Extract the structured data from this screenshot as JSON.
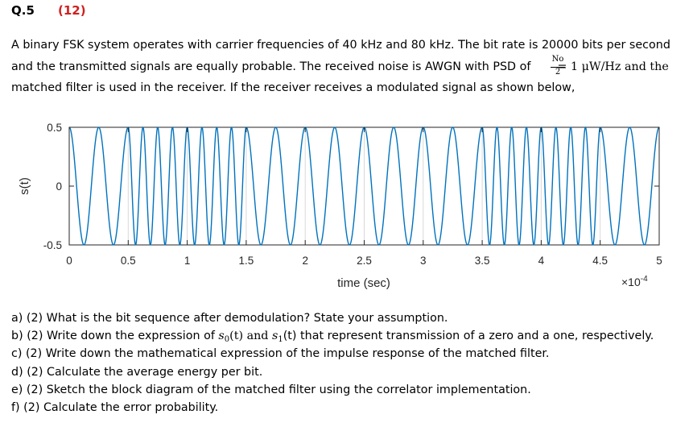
{
  "header": {
    "question": "Q.5",
    "marks": "(12)"
  },
  "intro": {
    "line1": "A binary FSK system operates with carrier frequencies of 40 kHz and 80 kHz. The bit rate is 20000 bits per second",
    "line2_a": "and the transmitted signals are equally probable. The received noise is AWGN with PSD of",
    "frac_num": "No",
    "frac_den": "2",
    "line2_b": "= 1  μW/Hz and the",
    "line3": "matched filter is used in the receiver. If the receiver receives a modulated signal as shown below,"
  },
  "chart_data": {
    "type": "line",
    "xlabel": "time (sec)",
    "ylabel": "s(t)",
    "xlim": [
      0,
      0.0005
    ],
    "ylim": [
      -0.5,
      0.5
    ],
    "amplitude": 0.5,
    "xticks": [
      "0",
      "0.5",
      "1",
      "1.5",
      "2",
      "2.5",
      "3",
      "3.5",
      "4",
      "4.5",
      "5"
    ],
    "yticks": [
      "0.5",
      "0",
      "-0.5"
    ],
    "x_exponent_label": "×10",
    "x_exponent": "-4",
    "bit_period": 5e-05,
    "bit_frequencies_hz": [
      40000,
      80000,
      80000,
      40000,
      40000,
      40000,
      40000,
      80000,
      80000,
      40000
    ],
    "color": "#0072bd",
    "grid": "vertical"
  },
  "parts": {
    "a": "a) (2) What is the bit sequence after demodulation? State your assumption.",
    "b_pre": "b) (2) Write down the expression of ",
    "b_s0": "s",
    "b_s0_sub": "0",
    "b_mid1": "(t) and ",
    "b_s1": "s",
    "b_s1_sub": "1",
    "b_post": "(t) that represent transmission of a zero and a one, respectively.",
    "c": "c) (2) Write down the mathematical expression of the impulse response of the matched filter.",
    "d": "d) (2) Calculate the average energy per bit.",
    "e": "e) (2) Sketch the block diagram of the matched filter using the correlator implementation.",
    "f": "f) (2) Calculate the error probability."
  }
}
